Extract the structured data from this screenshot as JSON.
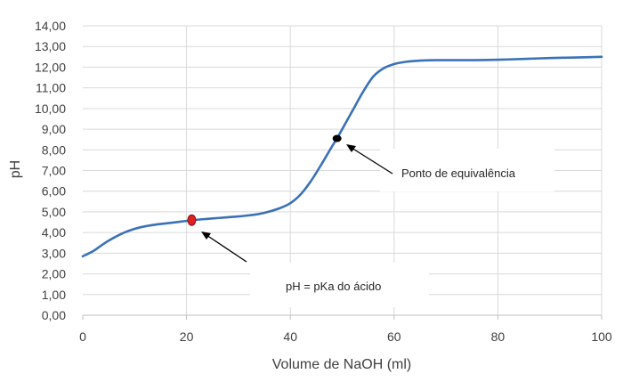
{
  "chart_data": {
    "type": "line",
    "xlabel": "Volume de NaOH (ml)",
    "ylabel": "pH",
    "xlim": [
      0,
      100
    ],
    "ylim": [
      0,
      14
    ],
    "x_ticks": [
      "0",
      "20",
      "40",
      "60",
      "80",
      "100"
    ],
    "y_ticks": [
      "0,00",
      "1,00",
      "2,00",
      "3,00",
      "4,00",
      "5,00",
      "6,00",
      "7,00",
      "8,00",
      "9,00",
      "10,00",
      "11,00",
      "12,00",
      "13,00",
      "14,00"
    ],
    "grid": true,
    "line_color": "#3a72b8",
    "series": [
      {
        "x": [
          0,
          2,
          4,
          6,
          8,
          10,
          12,
          14,
          16,
          18,
          20,
          22,
          24,
          26,
          28,
          30,
          32,
          34,
          36,
          38,
          40,
          42,
          44,
          46,
          48,
          49,
          50,
          52,
          54,
          56,
          58,
          60,
          62,
          64,
          66,
          68,
          70,
          75,
          80,
          85,
          90,
          95,
          100
        ],
        "values": [
          2.85,
          3.1,
          3.45,
          3.75,
          4.0,
          4.18,
          4.3,
          4.38,
          4.44,
          4.5,
          4.56,
          4.62,
          4.66,
          4.7,
          4.74,
          4.78,
          4.83,
          4.9,
          5.02,
          5.18,
          5.42,
          5.85,
          6.5,
          7.3,
          8.15,
          8.55,
          9.0,
          9.9,
          10.8,
          11.55,
          11.95,
          12.15,
          12.25,
          12.3,
          12.33,
          12.34,
          12.34,
          12.34,
          12.36,
          12.4,
          12.44,
          12.47,
          12.5
        ]
      }
    ],
    "markers": [
      {
        "name": "half-equivalence-point",
        "x": 21,
        "y": 4.6,
        "color": "#e02020",
        "stroke": "#7a1010"
      },
      {
        "name": "equivalence-point",
        "x": 49,
        "y": 8.55,
        "color": "#000000",
        "stroke": "#000000"
      }
    ],
    "annotations": [
      {
        "text": "Ponto de equivalência",
        "target_x": 49,
        "target_y": 8.55
      },
      {
        "text": "pH = pKa do ácido",
        "target_x": 21,
        "target_y": 4.6
      }
    ]
  }
}
